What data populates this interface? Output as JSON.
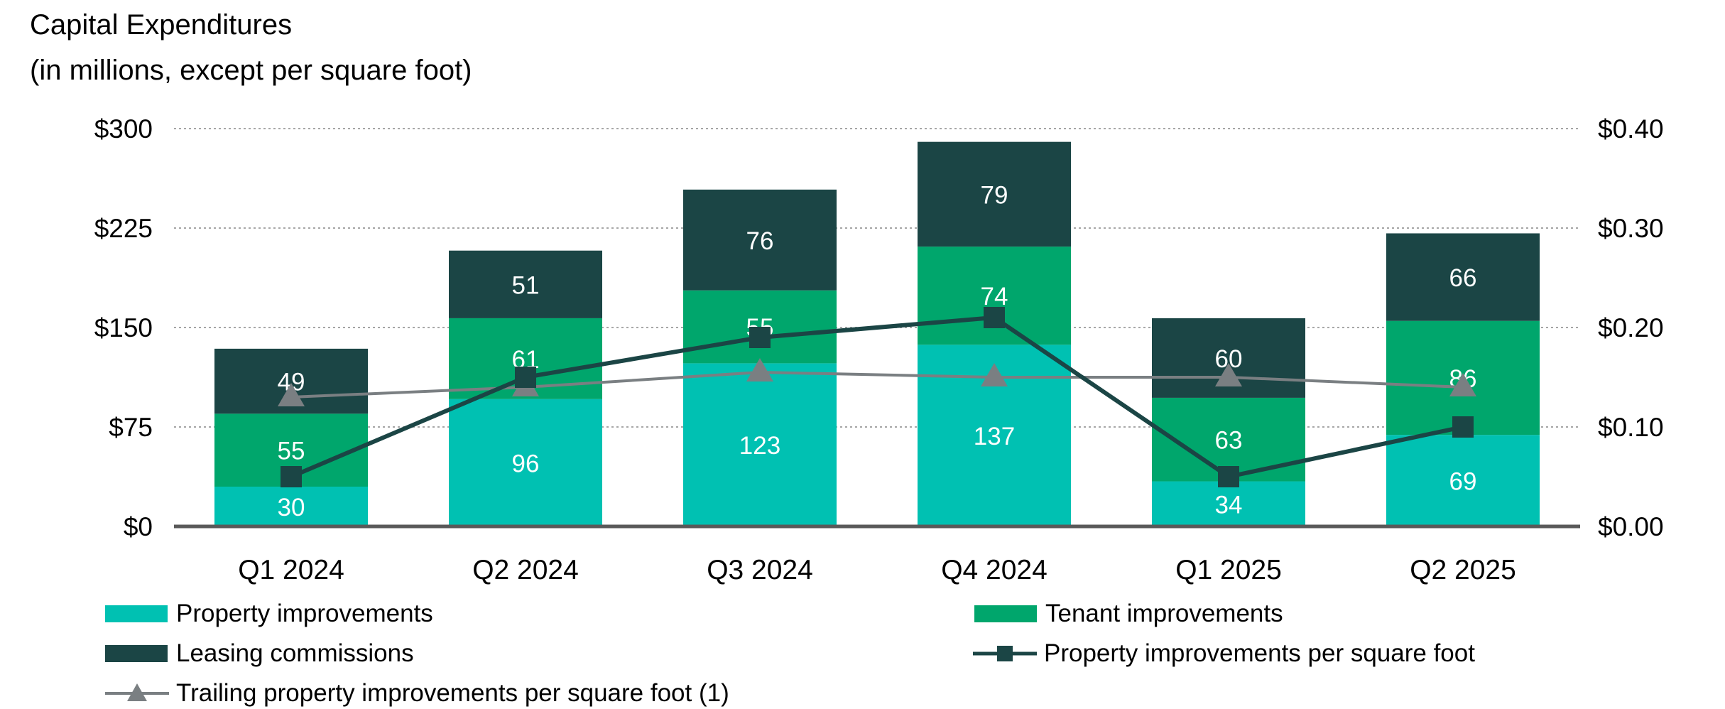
{
  "title": {
    "line1": "Capital Expenditures",
    "line2": "(in millions, except per square foot)"
  },
  "colors": {
    "property": "#00C1B2",
    "tenant": "#00A66C",
    "leasing": "#1B4545",
    "ppsf_line": "#1B4545",
    "trailing_line": "#7A7F82",
    "grid": "#A6A6A6",
    "axis": "#595959",
    "bar_label": "#FFFFFF"
  },
  "chart_data": {
    "type": "bar",
    "stacked": true,
    "categories": [
      "Q1 2024",
      "Q2 2024",
      "Q3 2024",
      "Q4 2024",
      "Q1 2025",
      "Q2 2025"
    ],
    "series": [
      {
        "name": "Property improvements",
        "axis": "left",
        "values": [
          30,
          96,
          123,
          137,
          34,
          69
        ]
      },
      {
        "name": "Tenant improvements",
        "axis": "left",
        "values": [
          55,
          61,
          55,
          74,
          63,
          86
        ]
      },
      {
        "name": "Leasing commissions",
        "axis": "left",
        "values": [
          49,
          51,
          76,
          79,
          60,
          66
        ]
      }
    ],
    "lines": [
      {
        "name": "Property improvements per square foot",
        "axis": "right",
        "marker": "square",
        "values": [
          0.05,
          0.15,
          0.19,
          0.21,
          0.05,
          0.1
        ]
      },
      {
        "name": "Trailing property improvements per square foot (1)",
        "axis": "right",
        "marker": "triangle",
        "values": [
          0.13,
          0.14,
          0.155,
          0.15,
          0.15,
          0.14
        ]
      }
    ],
    "y_left": {
      "min": 0,
      "max": 300,
      "ticks": [
        0,
        75,
        150,
        225,
        300
      ],
      "tick_labels": [
        "$0",
        "$75",
        "$150",
        "$225",
        "$300"
      ]
    },
    "y_right": {
      "min": 0,
      "max": 0.4,
      "ticks": [
        0,
        0.1,
        0.2,
        0.3,
        0.4
      ],
      "tick_labels": [
        "$0.00",
        "$0.10",
        "$0.20",
        "$0.30",
        "$0.40"
      ]
    },
    "grid": true,
    "legend_position": "bottom"
  },
  "legend": [
    {
      "label": "Property improvements",
      "kind": "box",
      "color_key": "property"
    },
    {
      "label": "Tenant improvements",
      "kind": "box",
      "color_key": "tenant"
    },
    {
      "label": "Leasing commissions",
      "kind": "box",
      "color_key": "leasing"
    },
    {
      "label": "Property improvements per square foot",
      "kind": "line-square",
      "color_key": "ppsf_line"
    },
    {
      "label": "Trailing property improvements per square foot (1)",
      "kind": "line-triangle",
      "color_key": "trailing_line"
    }
  ]
}
